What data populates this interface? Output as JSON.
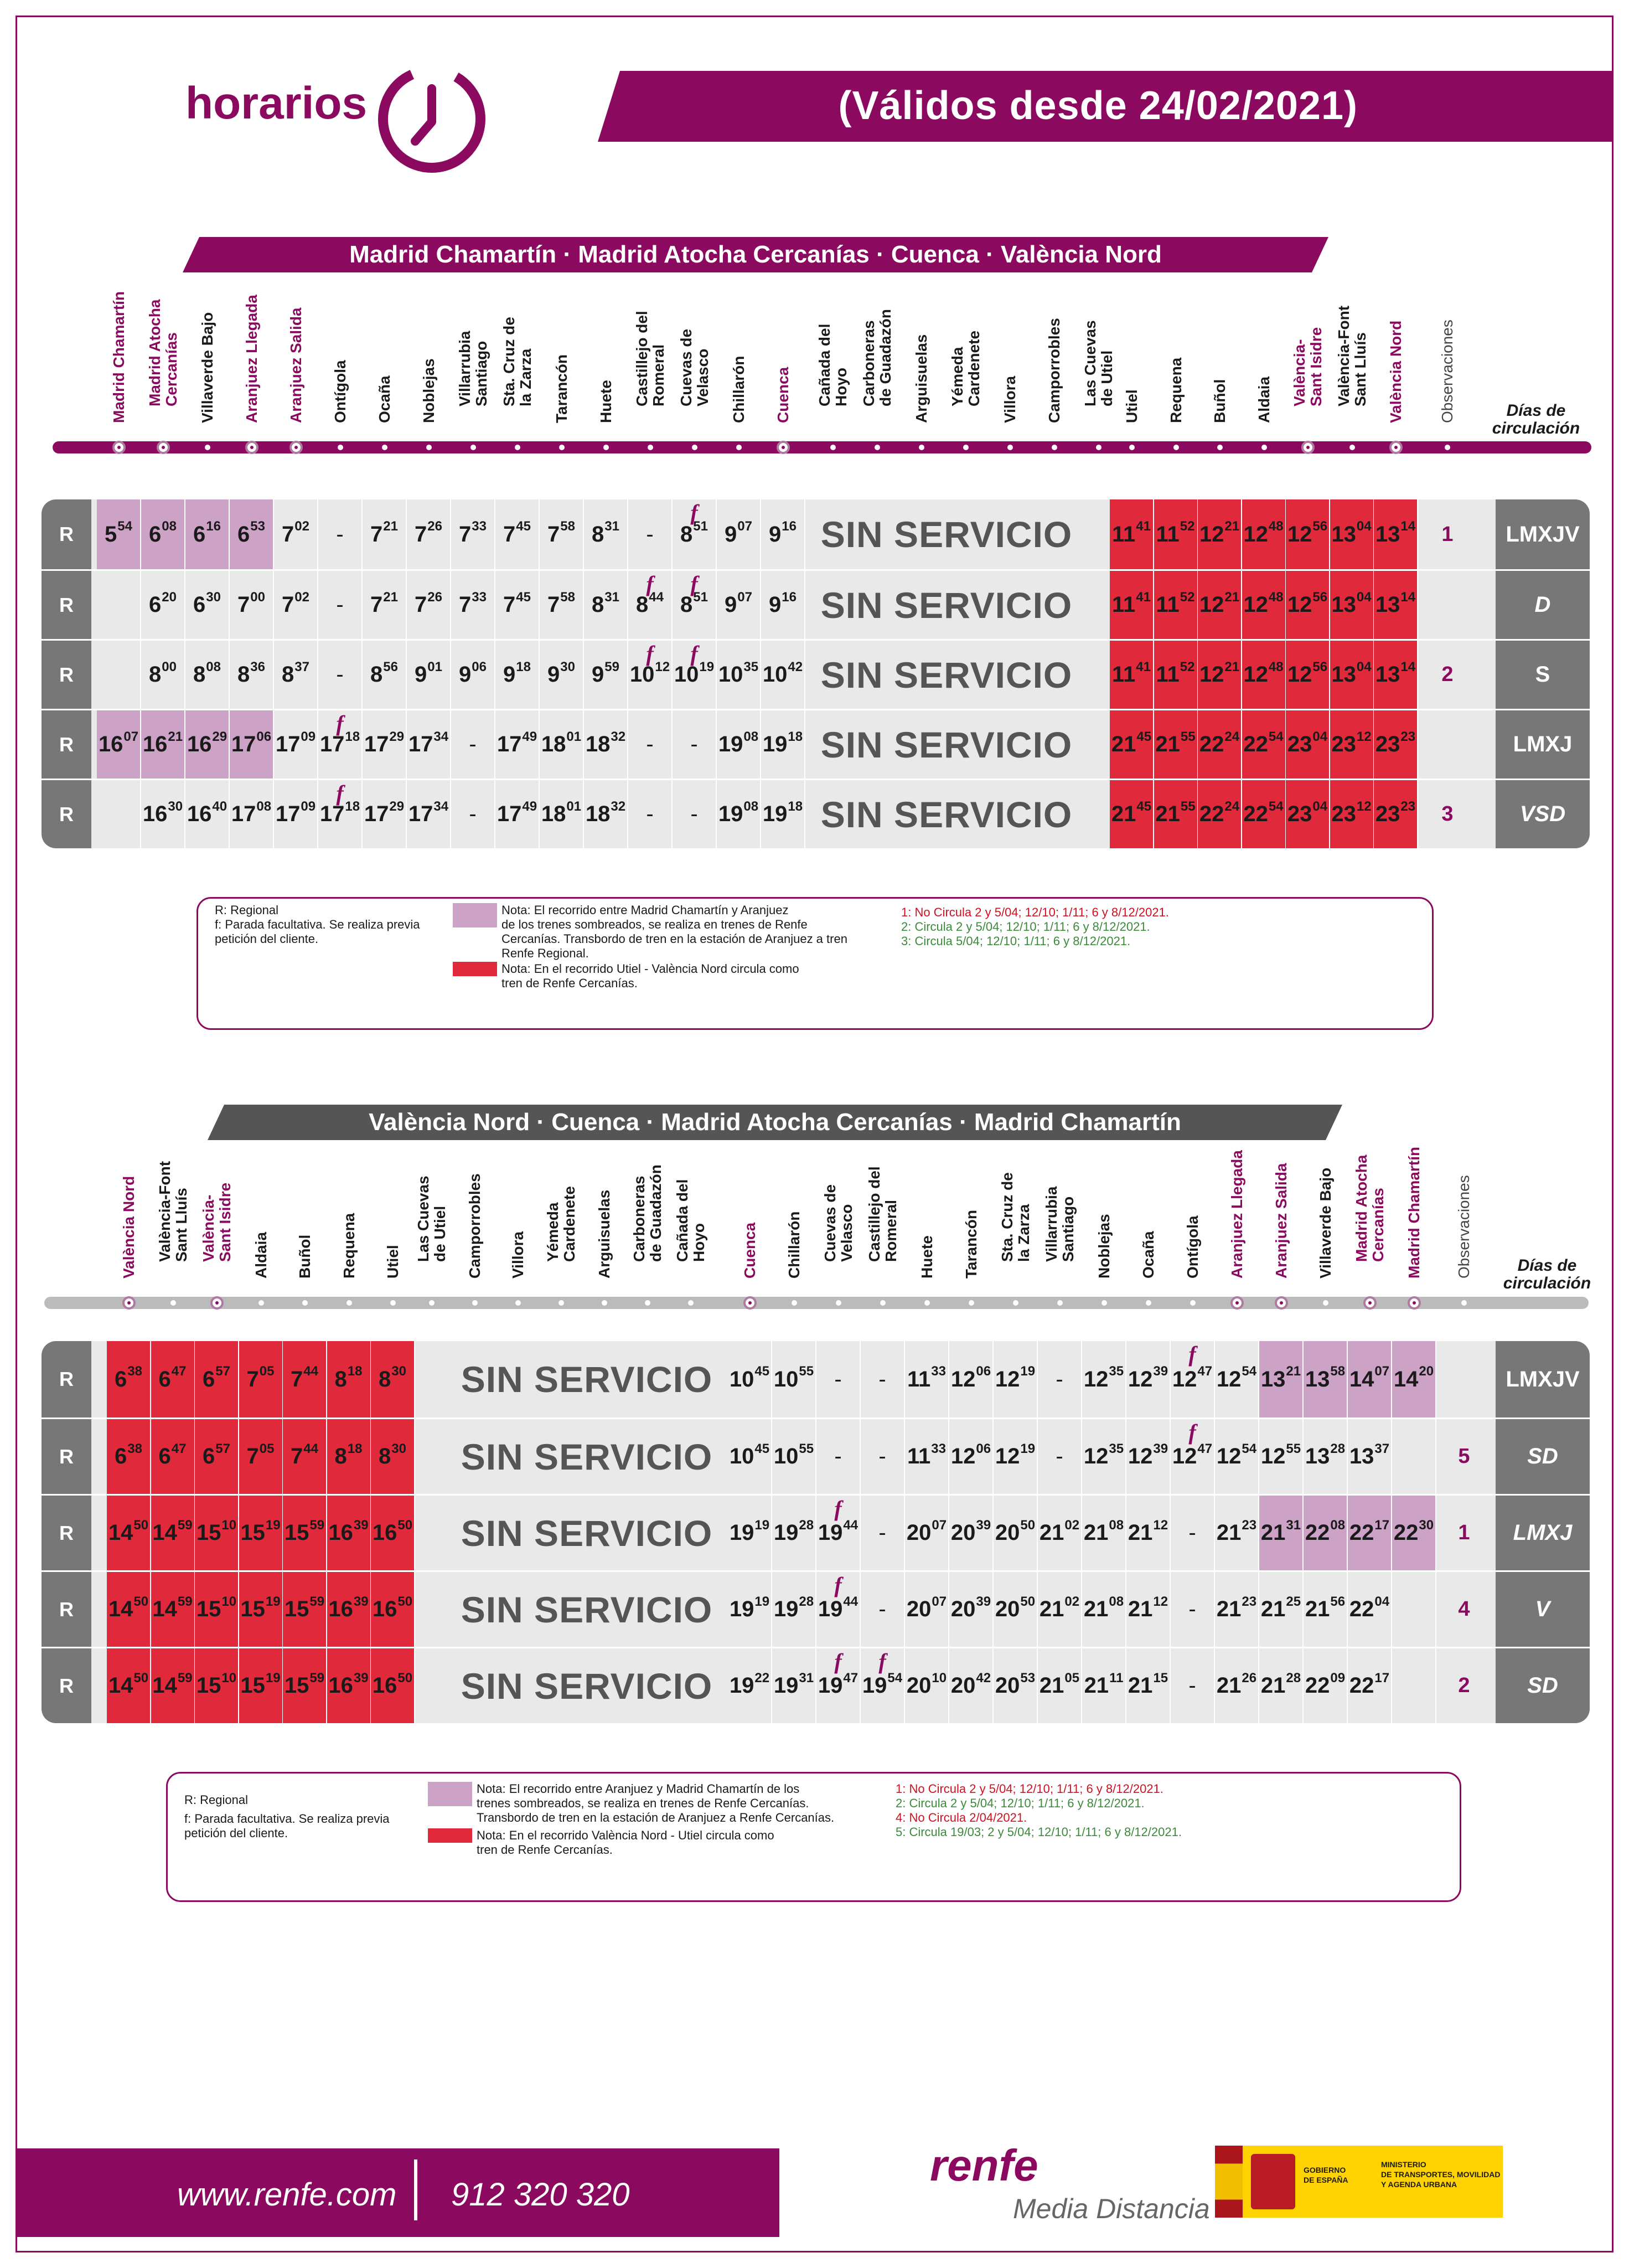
{
  "header": {
    "brand": "horarios",
    "validity": "(Válidos desde 24/02/2021)"
  },
  "outbound": {
    "title": "Madrid Chamartín · Madrid Atocha Cercanías · Cuenca · València Nord",
    "stations": [
      "Madrid Chamartín",
      "Madrid Atocha\nCercanías",
      "Villaverde Bajo",
      "Aranjuez Llegada",
      "Aranjuez Salida",
      "Ontígola",
      "Ocaña",
      "Noblejas",
      "Villarrubia\nSantiago",
      "Sta. Cruz de\nla Zarza",
      "Tarancón",
      "Huete",
      "Castillejo del\nRomeral",
      "Cuevas de\nVelasco",
      "Chillarón",
      "Cuenca",
      "Cañada del\nHoyo",
      "Carboneras\nde Guadazón",
      "Arguisuelas",
      "Yémeda\nCardenete",
      "Villora",
      "Camporrobles",
      "Las Cuevas\nde Utiel",
      "Utiel",
      "Requena",
      "Buñol",
      "Aldaia",
      "València-\nSant Isidre",
      "València-Font\nSant Lluís",
      "València Nord"
    ],
    "highlight": [
      0,
      1,
      3,
      4,
      15,
      27,
      29
    ],
    "observ_label": "Observaciones",
    "dias_label": "Días de\ncirculación",
    "rows": [
      {
        "type": "R",
        "times": [
          "5|54",
          "6|08",
          "6|16",
          "6|53",
          "7|02",
          "-",
          "7|21",
          "7|26",
          "7|33",
          "7|45",
          "7|58",
          "8|31",
          "-",
          "f8|51",
          "9|07",
          "9|16"
        ],
        "red": [
          "11|41",
          "11|52",
          "12|21",
          "12|48",
          "12|56",
          "13|04",
          "13|14"
        ],
        "pur": [
          0,
          1,
          2,
          3
        ],
        "obs": "1",
        "dias": "LMXJV",
        "italic": false
      },
      {
        "type": "R",
        "times": [
          "",
          "6|20",
          "6|30",
          "7|00",
          "7|02",
          "-",
          "7|21",
          "7|26",
          "7|33",
          "7|45",
          "7|58",
          "8|31",
          "f8|44",
          "f8|51",
          "9|07",
          "9|16"
        ],
        "red": [
          "11|41",
          "11|52",
          "12|21",
          "12|48",
          "12|56",
          "13|04",
          "13|14"
        ],
        "pur": [],
        "obs": "",
        "dias": "D",
        "italic": true
      },
      {
        "type": "R",
        "times": [
          "",
          "8|00",
          "8|08",
          "8|36",
          "8|37",
          "-",
          "8|56",
          "9|01",
          "9|06",
          "9|18",
          "9|30",
          "9|59",
          "f10|12",
          "f10|19",
          "10|35",
          "10|42"
        ],
        "red": [
          "11|41",
          "11|52",
          "12|21",
          "12|48",
          "12|56",
          "13|04",
          "13|14"
        ],
        "pur": [],
        "obs": "2",
        "dias": "S",
        "italic": false
      },
      {
        "type": "R",
        "times": [
          "16|07",
          "16|21",
          "16|29",
          "17|06",
          "17|09",
          "f17|18",
          "17|29",
          "17|34",
          "-",
          "17|49",
          "18|01",
          "18|32",
          "-",
          "-",
          "19|08",
          "19|18"
        ],
        "red": [
          "21|45",
          "21|55",
          "22|24",
          "22|54",
          "23|04",
          "23|12",
          "23|23"
        ],
        "pur": [
          0,
          1,
          2,
          3
        ],
        "obs": "",
        "dias": "LMXJ",
        "italic": false
      },
      {
        "type": "R",
        "times": [
          "",
          "16|30",
          "16|40",
          "17|08",
          "17|09",
          "f17|18",
          "17|29",
          "17|34",
          "-",
          "17|49",
          "18|01",
          "18|32",
          "-",
          "-",
          "19|08",
          "19|18"
        ],
        "red": [
          "21|45",
          "21|55",
          "22|24",
          "22|54",
          "23|04",
          "23|12",
          "23|23"
        ],
        "pur": [],
        "obs": "3",
        "dias": "VSD",
        "italic": true
      }
    ],
    "no_service": "SIN SERVICIO",
    "notes": {
      "r": "R: Regional",
      "f": "f: Parada facultativa. Se realiza previa\npetición del cliente.",
      "nota_pur": "Nota: El recorrido entre Madrid Chamartín y Aranjuez\nde los trenes sombreados, se realiza en trenes de Renfe\nCercanías. Transbordo de tren en la estación de Aranjuez a tren\nRenfe Regional.",
      "nota_red": "Nota: En el recorrido Utiel - València Nord circula como\ntren de Renfe Cercanías.",
      "obs": [
        "1: No Circula 2 y 5/04; 12/10; 1/11; 6 y 8/12/2021.",
        "2: Circula 2 y 5/04; 12/10; 1/11; 6 y 8/12/2021.",
        "3: Circula 5/04; 12/10; 1/11; 6 y 8/12/2021."
      ]
    }
  },
  "inbound": {
    "title": "València Nord · Cuenca · Madrid Atocha Cercanías · Madrid Chamartín",
    "stations": [
      "València Nord",
      "València-Font\nSant Lluís",
      "València-\nSant Isidre",
      "Aldaia",
      "Buñol",
      "Requena",
      "Utiel",
      "Las Cuevas\nde Utiel",
      "Camporrobles",
      "Villora",
      "Yémeda\nCardenete",
      "Arguisuelas",
      "Carboneras\nde Guadazón",
      "Cañada del\nHoyo",
      "Cuenca",
      "Chillarón",
      "Cuevas de\nVelasco",
      "Castillejo del\nRomeral",
      "Huete",
      "Tarancón",
      "Sta. Cruz de\nla Zarza",
      "Villarrubia\nSantiago",
      "Noblejas",
      "Ocaña",
      "Ontígola",
      "Aranjuez Llegada",
      "Aranjuez Salida",
      "Villaverde Bajo",
      "Madrid Atocha\nCercanías",
      "Madrid Chamartín"
    ],
    "highlight": [
      0,
      2,
      14,
      25,
      26,
      28,
      29
    ],
    "observ_label": "Observaciones",
    "dias_label": "Días de\ncirculación",
    "rows": [
      {
        "type": "R",
        "red": [
          "6|38",
          "6|47",
          "6|57",
          "7|05",
          "7|44",
          "8|18",
          "8|30"
        ],
        "times": [
          "10|45",
          "10|55",
          "-",
          "-",
          "11|33",
          "12|06",
          "12|19",
          "-",
          "12|35",
          "12|39",
          "f12|47",
          "12|54",
          "13|21",
          "13|58",
          "14|07",
          "14|20"
        ],
        "pur": [
          12,
          13,
          14,
          15
        ],
        "obs": "",
        "dias": "LMXJV",
        "italic": false
      },
      {
        "type": "R",
        "red": [
          "6|38",
          "6|47",
          "6|57",
          "7|05",
          "7|44",
          "8|18",
          "8|30"
        ],
        "times": [
          "10|45",
          "10|55",
          "-",
          "-",
          "11|33",
          "12|06",
          "12|19",
          "-",
          "12|35",
          "12|39",
          "f12|47",
          "12|54",
          "12|55",
          "13|28",
          "13|37",
          ""
        ],
        "pur": [],
        "obs": "5",
        "dias": "SD",
        "italic": true
      },
      {
        "type": "R",
        "red": [
          "14|50",
          "14|59",
          "15|10",
          "15|19",
          "15|59",
          "16|39",
          "16|50"
        ],
        "times": [
          "19|19",
          "19|28",
          "f19|44",
          "-",
          "20|07",
          "20|39",
          "20|50",
          "21|02",
          "21|08",
          "21|12",
          "-",
          "21|23",
          "21|31",
          "22|08",
          "22|17",
          "22|30"
        ],
        "pur": [
          12,
          13,
          14,
          15
        ],
        "obs": "1",
        "dias": "LMXJ",
        "italic": true
      },
      {
        "type": "R",
        "red": [
          "14|50",
          "14|59",
          "15|10",
          "15|19",
          "15|59",
          "16|39",
          "16|50"
        ],
        "times": [
          "19|19",
          "19|28",
          "f19|44",
          "-",
          "20|07",
          "20|39",
          "20|50",
          "21|02",
          "21|08",
          "21|12",
          "-",
          "21|23",
          "21|25",
          "21|56",
          "22|04",
          ""
        ],
        "pur": [],
        "obs": "4",
        "dias": "V",
        "italic": true
      },
      {
        "type": "R",
        "red": [
          "14|50",
          "14|59",
          "15|10",
          "15|19",
          "15|59",
          "16|39",
          "16|50"
        ],
        "times": [
          "19|22",
          "19|31",
          "f19|47",
          "f19|54",
          "20|10",
          "20|42",
          "20|53",
          "21|05",
          "21|11",
          "21|15",
          "-",
          "21|26",
          "21|28",
          "22|09",
          "22|17",
          ""
        ],
        "pur": [],
        "obs": "2",
        "dias": "SD",
        "italic": true
      }
    ],
    "no_service": "SIN SERVICIO",
    "notes": {
      "r": "R: Regional",
      "f": "f: Parada facultativa. Se realiza previa\npetición del cliente.",
      "nota_pur": "Nota: El recorrido entre Aranjuez  y Madrid Chamartín de los\ntrenes sombreados, se realiza en trenes de Renfe Cercanías.\nTransbordo de tren en la estación de Aranjuez a Renfe Cercanías.",
      "nota_red": "Nota: En el recorrido València Nord - Utiel circula como\ntren de Renfe Cercanías.",
      "obs": [
        "1: No Circula 2 y 5/04; 12/10; 1/11; 6 y 8/12/2021.",
        "2: Circula 2 y 5/04; 12/10; 1/11; 6 y 8/12/2021.",
        "4: No Circula 2/04/2021.",
        "5: Circula 19/03; 2 y 5/04; 12/10; 1/11; 6 y 8/12/2021."
      ]
    }
  },
  "footer": {
    "web": "www.renfe.com",
    "phone": "912 320 320",
    "renfe": "renfe",
    "media": "Media Distancia",
    "gov1": "GOBIERNO\nDE ESPAÑA",
    "gov2": "MINISTERIO\nDE TRANSPORTES, MOVILIDAD\nY AGENDA URBANA"
  },
  "colors": {
    "brand": "#8b0a5f",
    "red": "#e02a3c",
    "purple_shade": "#cca2c6"
  }
}
